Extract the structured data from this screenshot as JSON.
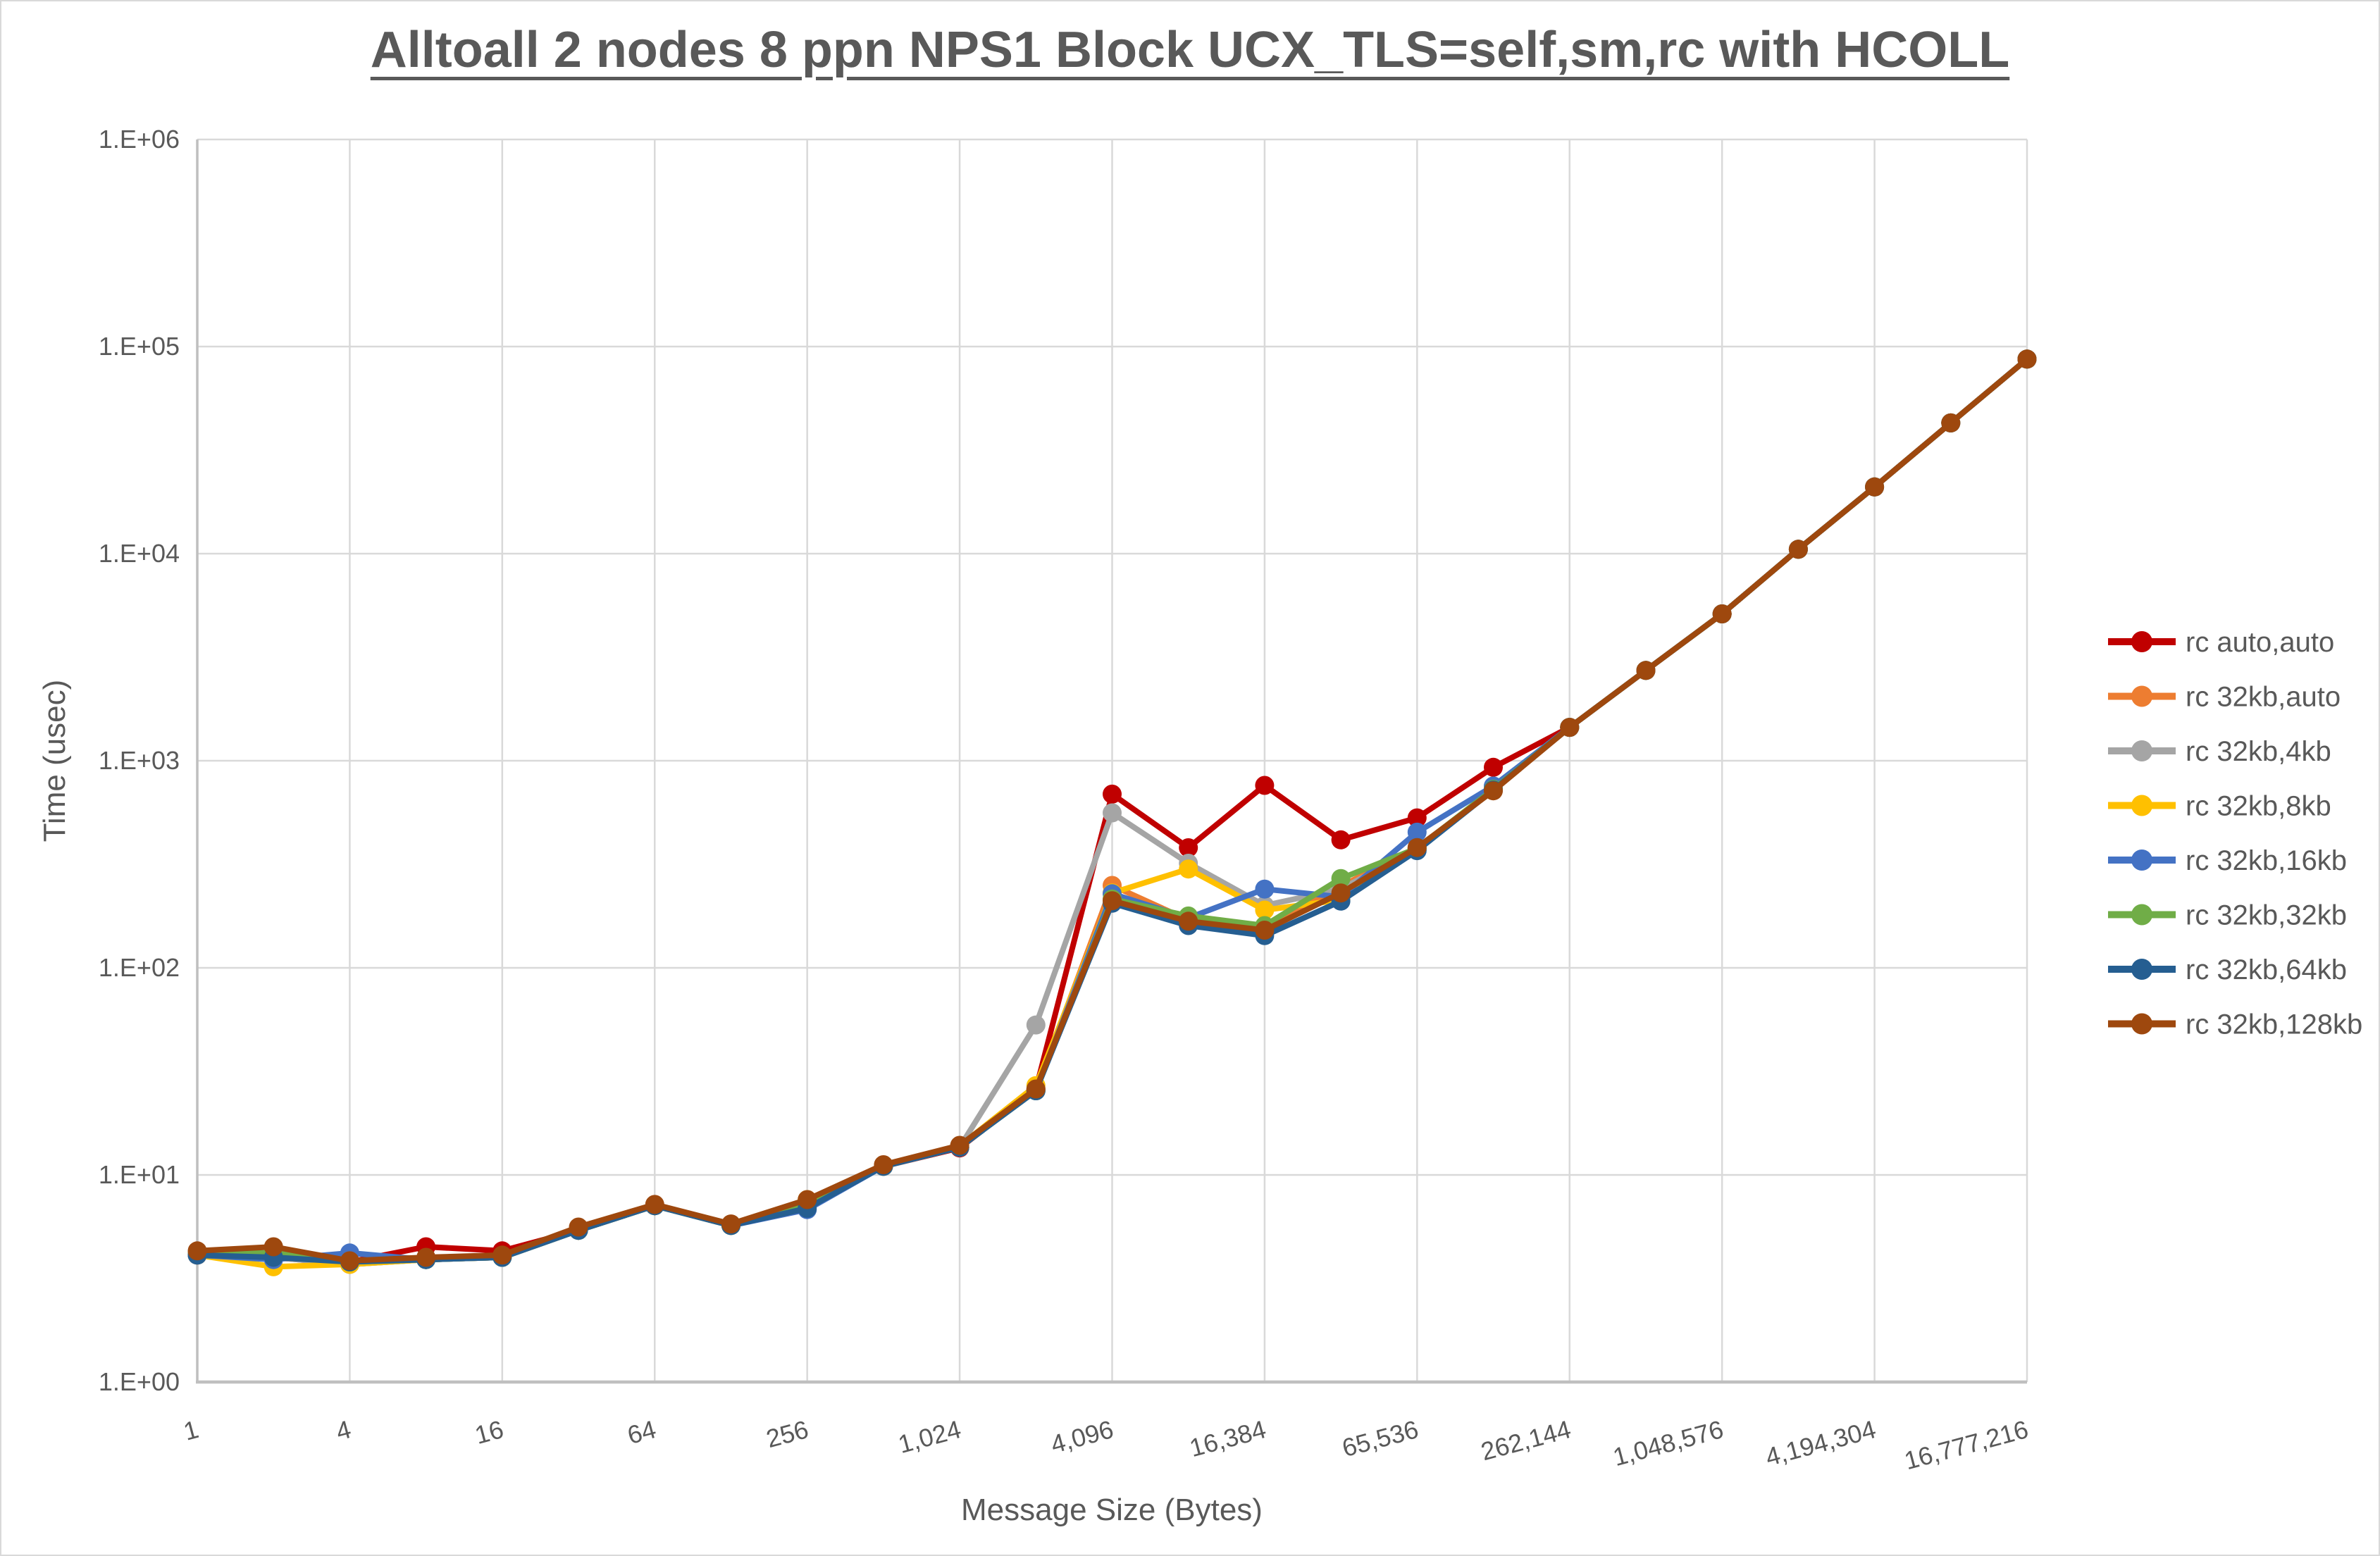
{
  "title": "Alltoall 2 nodes 8 ppn NPS1 Block UCX_TLS=self,sm,rc with HCOLL",
  "chart_data": {
    "type": "line",
    "title": "Alltoall 2 nodes 8 ppn NPS1 Block UCX_TLS=self,sm,rc with HCOLL",
    "xlabel": "Message Size (Bytes)",
    "ylabel": "Time (usec)",
    "x_scale": "log2",
    "y_scale": "log10",
    "xlim": [
      1,
      16777216
    ],
    "ylim": [
      1,
      1000000
    ],
    "grid": true,
    "legend_position": "right",
    "x_tick_labels": [
      "1",
      "4",
      "16",
      "64",
      "256",
      "1,024",
      "4,096",
      "16,384",
      "65,536",
      "262,144",
      "1,048,576",
      "4,194,304",
      "16,777,216"
    ],
    "y_tick_labels": [
      "1.E+00",
      "1.E+01",
      "1.E+02",
      "1.E+03",
      "1.E+04",
      "1.E+05",
      "1.E+06"
    ],
    "x": [
      1,
      2,
      4,
      8,
      16,
      32,
      64,
      128,
      256,
      512,
      1024,
      2048,
      4096,
      8192,
      16384,
      32768,
      65536,
      131072,
      262144,
      524288,
      1048576,
      2097152,
      4194304,
      8388608,
      16777216
    ],
    "series": [
      {
        "name": "rc auto,auto",
        "color": "#C00000",
        "values": [
          4.1,
          4.1,
          3.8,
          4.5,
          4.3,
          5.4,
          7.1,
          5.7,
          7.2,
          11,
          13.5,
          26,
          690,
          380,
          760,
          415,
          530,
          930,
          1450,
          2730,
          5120,
          10500,
          21000,
          42800,
          87000
        ]
      },
      {
        "name": "rc 32kb,auto",
        "color": "#ED7D31",
        "values": [
          4.1,
          4.0,
          3.7,
          3.9,
          4.0,
          5.4,
          7.1,
          5.7,
          7.3,
          11,
          13.6,
          25.5,
          250,
          170,
          158,
          248,
          378,
          725,
          1450,
          2730,
          5120,
          10500,
          21000,
          42800,
          87000
        ]
      },
      {
        "name": "rc 32kb,4kb",
        "color": "#A5A5A5",
        "values": [
          4.1,
          4.0,
          3.7,
          3.9,
          4.0,
          5.4,
          7.1,
          5.7,
          7.2,
          11,
          13.6,
          53,
          560,
          320,
          200,
          240,
          375,
          730,
          1450,
          2730,
          5120,
          10500,
          21000,
          42800,
          87000
        ]
      },
      {
        "name": "rc 32kb,8kb",
        "color": "#FFC000",
        "values": [
          4.1,
          3.6,
          3.7,
          3.9,
          4.0,
          5.4,
          7.1,
          5.7,
          7.6,
          11,
          13.8,
          27,
          230,
          300,
          190,
          213,
          375,
          730,
          1450,
          2730,
          5120,
          10500,
          21000,
          42800,
          87000
        ]
      },
      {
        "name": "rc 32kb,16kb",
        "color": "#4472C4",
        "values": [
          4.1,
          3.9,
          4.2,
          3.9,
          4.0,
          5.4,
          7.1,
          5.7,
          6.8,
          11,
          13.6,
          25.5,
          228,
          174,
          240,
          220,
          452,
          755,
          1450,
          2730,
          5120,
          10500,
          21000,
          42800,
          87000
        ]
      },
      {
        "name": "rc 32kb,32kb",
        "color": "#70AD47",
        "values": [
          4.2,
          4.2,
          3.8,
          3.9,
          4.0,
          5.4,
          7.1,
          5.7,
          7.2,
          11,
          13.6,
          25.5,
          215,
          178,
          160,
          270,
          378,
          728,
          1450,
          2730,
          5120,
          10500,
          21000,
          42800,
          87000
        ]
      },
      {
        "name": "rc 32kb,64kb",
        "color": "#255E91",
        "values": [
          4.1,
          4.0,
          3.8,
          3.9,
          4.0,
          5.4,
          7.1,
          5.7,
          6.9,
          11,
          13.6,
          25.5,
          205,
          160,
          143,
          210,
          368,
          722,
          1450,
          2730,
          5120,
          10500,
          21000,
          42800,
          87000
        ]
      },
      {
        "name": "rc 32kb,128kb",
        "color": "#9E480E",
        "values": [
          4.3,
          4.5,
          3.85,
          4.0,
          4.1,
          5.6,
          7.2,
          5.8,
          7.6,
          11.2,
          13.9,
          26,
          211,
          168,
          152,
          230,
          381,
          716,
          1450,
          2730,
          5120,
          10500,
          21000,
          42800,
          87000
        ]
      }
    ]
  },
  "style": {
    "grid_color": "#D9D9D9",
    "axis_color": "#BFBFBF",
    "text_color": "#595959",
    "background": "#FFFFFF"
  }
}
